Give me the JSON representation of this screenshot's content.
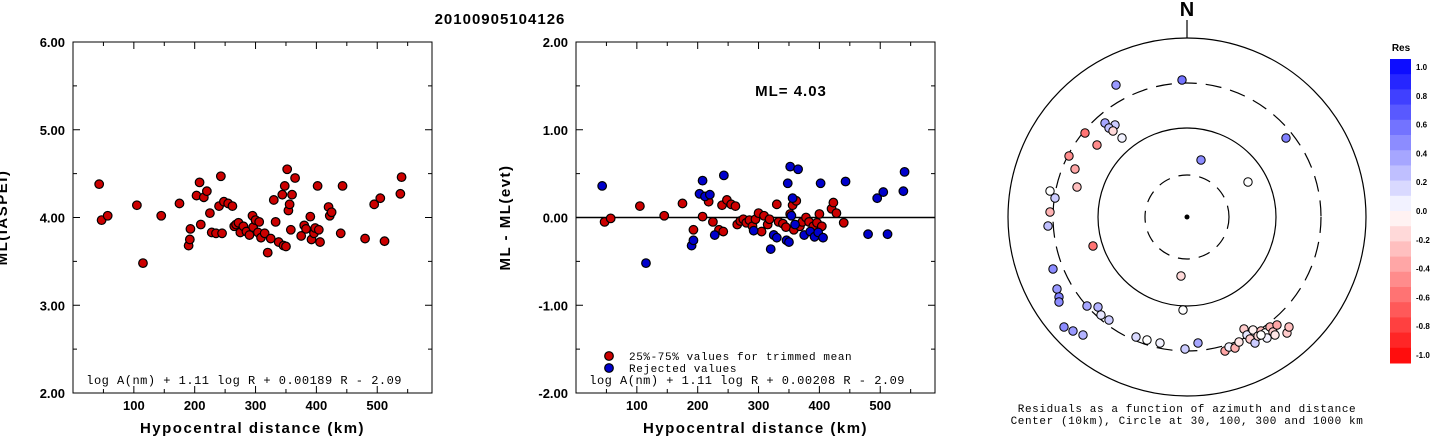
{
  "page_title": "20100905104126",
  "colors": {
    "red": "#cc0000",
    "blue": "#0000cc",
    "axis": "#000000"
  },
  "chart_data": [
    {
      "type": "scatter",
      "title": "",
      "xlabel": "Hypocentral distance (km)",
      "ylabel": "ML(IASPEI)",
      "xlim": [
        0,
        590
      ],
      "ylim": [
        2.0,
        6.0
      ],
      "xticks": [
        "100",
        "200",
        "300",
        "400",
        "500"
      ],
      "yticks": [
        "2.00",
        "3.00",
        "4.00",
        "5.00",
        "6.00"
      ],
      "formula": "log A(nm) + 1.11 log R + 0.00189 R - 2.09",
      "series": [
        {
          "color": "#cc0000",
          "points": [
            [
              43,
              4.38
            ],
            [
              47,
              3.97
            ],
            [
              57,
              4.02
            ],
            [
              105,
              4.14
            ],
            [
              115,
              3.48
            ],
            [
              145,
              4.02
            ],
            [
              175,
              4.16
            ],
            [
              190,
              3.68
            ],
            [
              192,
              3.75
            ],
            [
              193,
              3.87
            ],
            [
              203,
              4.25
            ],
            [
              208,
              4.4
            ],
            [
              210,
              3.92
            ],
            [
              215,
              4.23
            ],
            [
              220,
              4.3
            ],
            [
              225,
              4.05
            ],
            [
              228,
              3.83
            ],
            [
              235,
              3.82
            ],
            [
              240,
              4.13
            ],
            [
              243,
              4.47
            ],
            [
              245,
              3.82
            ],
            [
              248,
              4.18
            ],
            [
              255,
              4.16
            ],
            [
              262,
              4.13
            ],
            [
              265,
              3.9
            ],
            [
              268,
              3.92
            ],
            [
              272,
              3.94
            ],
            [
              275,
              3.83
            ],
            [
              280,
              3.9
            ],
            [
              285,
              3.84
            ],
            [
              290,
              3.8
            ],
            [
              295,
              4.02
            ],
            [
              296,
              3.89
            ],
            [
              300,
              3.97
            ],
            [
              304,
              3.83
            ],
            [
              306,
              3.95
            ],
            [
              309,
              3.77
            ],
            [
              315,
              3.82
            ],
            [
              320,
              3.6
            ],
            [
              325,
              3.76
            ],
            [
              330,
              4.2
            ],
            [
              333,
              3.95
            ],
            [
              338,
              3.72
            ],
            [
              344,
              4.26
            ],
            [
              346,
              3.68
            ],
            [
              348,
              4.36
            ],
            [
              350,
              3.67
            ],
            [
              352,
              4.55
            ],
            [
              354,
              4.08
            ],
            [
              356,
              4.15
            ],
            [
              358,
              3.86
            ],
            [
              360,
              4.26
            ],
            [
              365,
              4.45
            ],
            [
              375,
              3.79
            ],
            [
              380,
              3.91
            ],
            [
              383,
              3.87
            ],
            [
              390,
              4.01
            ],
            [
              392,
              3.75
            ],
            [
              396,
              3.82
            ],
            [
              398,
              3.88
            ],
            [
              402,
              4.36
            ],
            [
              404,
              3.86
            ],
            [
              406,
              3.72
            ],
            [
              420,
              4.12
            ],
            [
              422,
              4.02
            ],
            [
              425,
              4.06
            ],
            [
              440,
              3.82
            ],
            [
              443,
              4.36
            ],
            [
              480,
              3.76
            ],
            [
              495,
              4.15
            ],
            [
              505,
              4.22
            ],
            [
              512,
              3.73
            ],
            [
              538,
              4.27
            ],
            [
              540,
              4.46
            ]
          ]
        }
      ]
    },
    {
      "type": "scatter",
      "title": "",
      "xlabel": "Hypocentral distance (km)",
      "ylabel": "ML - ML(evt)",
      "xlim": [
        0,
        590
      ],
      "ylim": [
        -2.0,
        2.0
      ],
      "xticks": [
        "100",
        "200",
        "300",
        "400",
        "500"
      ],
      "yticks": [
        "-2.00",
        "-1.00",
        "0.00",
        "1.00",
        "2.00"
      ],
      "annotation": "ML= 4.03",
      "formula": "log A(nm) + 1.11 log R + 0.00208 R - 2.09",
      "legend": {
        "position": "bottom-left",
        "entries": [
          "25%-75% values for trimmed mean",
          "Rejected values"
        ]
      },
      "series": [
        {
          "name": "25%-75% values for trimmed mean",
          "color": "#cc0000",
          "points": [
            [
              47,
              -0.05
            ],
            [
              57,
              -0.01
            ],
            [
              105,
              0.13
            ],
            [
              145,
              0.02
            ],
            [
              175,
              0.16
            ],
            [
              193,
              -0.14
            ],
            [
              208,
              0.01
            ],
            [
              218,
              0.18
            ],
            [
              225,
              -0.05
            ],
            [
              235,
              -0.14
            ],
            [
              240,
              0.14
            ],
            [
              242,
              -0.16
            ],
            [
              248,
              0.2
            ],
            [
              255,
              0.15
            ],
            [
              262,
              0.13
            ],
            [
              265,
              -0.08
            ],
            [
              270,
              -0.04
            ],
            [
              275,
              -0.02
            ],
            [
              280,
              -0.06
            ],
            [
              285,
              -0.03
            ],
            [
              290,
              -0.1
            ],
            [
              295,
              -0.02
            ],
            [
              300,
              0.05
            ],
            [
              305,
              -0.16
            ],
            [
              309,
              0.02
            ],
            [
              315,
              -0.08
            ],
            [
              318,
              -0.02
            ],
            [
              325,
              -0.2
            ],
            [
              330,
              0.15
            ],
            [
              333,
              -0.05
            ],
            [
              340,
              -0.07
            ],
            [
              345,
              -0.11
            ],
            [
              352,
              0.04
            ],
            [
              356,
              0.14
            ],
            [
              358,
              -0.14
            ],
            [
              362,
              0.19
            ],
            [
              368,
              -0.1
            ],
            [
              372,
              -0.05
            ],
            [
              378,
              0.0
            ],
            [
              383,
              -0.05
            ],
            [
              390,
              -0.1
            ],
            [
              396,
              -0.06
            ],
            [
              400,
              0.04
            ],
            [
              404,
              -0.1
            ],
            [
              420,
              0.1
            ],
            [
              423,
              0.17
            ],
            [
              428,
              0.05
            ],
            [
              440,
              -0.06
            ]
          ]
        },
        {
          "name": "Rejected values",
          "color": "#0000cc",
          "points": [
            [
              43,
              0.36
            ],
            [
              115,
              -0.52
            ],
            [
              190,
              -0.32
            ],
            [
              193,
              -0.26
            ],
            [
              203,
              0.27
            ],
            [
              208,
              0.42
            ],
            [
              212,
              0.24
            ],
            [
              220,
              0.26
            ],
            [
              228,
              -0.2
            ],
            [
              243,
              0.48
            ],
            [
              292,
              -0.15
            ],
            [
              320,
              -0.36
            ],
            [
              325,
              -0.2
            ],
            [
              330,
              -0.23
            ],
            [
              346,
              -0.26
            ],
            [
              348,
              0.39
            ],
            [
              350,
              -0.28
            ],
            [
              352,
              0.58
            ],
            [
              354,
              0.02
            ],
            [
              356,
              0.22
            ],
            [
              360,
              -0.08
            ],
            [
              365,
              0.55
            ],
            [
              375,
              -0.2
            ],
            [
              385,
              -0.16
            ],
            [
              392,
              -0.22
            ],
            [
              398,
              -0.17
            ],
            [
              402,
              0.39
            ],
            [
              406,
              -0.23
            ],
            [
              443,
              0.41
            ],
            [
              480,
              -0.19
            ],
            [
              495,
              0.22
            ],
            [
              505,
              0.29
            ],
            [
              512,
              -0.19
            ],
            [
              538,
              0.3
            ],
            [
              540,
              0.52
            ]
          ]
        }
      ]
    }
  ],
  "polar_plot": {
    "north_label": "N",
    "colorbar_title": "Res",
    "colorbar_ticks": [
      "1.0",
      "0.8",
      "0.6",
      "0.4",
      "0.2",
      "0.0",
      "-0.2",
      "-0.4",
      "-0.6",
      "-0.8",
      "-1.0"
    ],
    "caption_line1": "Residuals as a function of azimuth and distance",
    "caption_line2": "Center (10km), Circle at 30, 100, 300 and 1000 km",
    "stations": [
      {
        "dx": -5,
        "dy": -137,
        "r": 0.55
      },
      {
        "dx": -71,
        "dy": -132,
        "r": 0.4
      },
      {
        "dx": -82,
        "dy": -94,
        "r": 0.35
      },
      {
        "dx": -72,
        "dy": -92,
        "r": 0.2
      },
      {
        "dx": -78,
        "dy": -89,
        "r": 0.25
      },
      {
        "dx": -74,
        "dy": -86,
        "r": -0.15
      },
      {
        "dx": -65,
        "dy": -79,
        "r": 0.05
      },
      {
        "dx": -102,
        "dy": -84,
        "r": -0.55
      },
      {
        "dx": -90,
        "dy": -72,
        "r": -0.45
      },
      {
        "dx": 99,
        "dy": -79,
        "r": 0.5
      },
      {
        "dx": 14,
        "dy": -57,
        "r": 0.45
      },
      {
        "dx": 61,
        "dy": -35,
        "r": 0.0
      },
      {
        "dx": -118,
        "dy": -61,
        "r": -0.45
      },
      {
        "dx": -112,
        "dy": -48,
        "r": -0.35
      },
      {
        "dx": -110,
        "dy": -30,
        "r": -0.25
      },
      {
        "dx": -137,
        "dy": -26,
        "r": 0.0
      },
      {
        "dx": -132,
        "dy": -19,
        "r": 0.2
      },
      {
        "dx": -137,
        "dy": -5,
        "r": -0.3
      },
      {
        "dx": -139,
        "dy": 9,
        "r": 0.25
      },
      {
        "dx": -94,
        "dy": 29,
        "r": -0.55
      },
      {
        "dx": -134,
        "dy": 52,
        "r": 0.45
      },
      {
        "dx": -6,
        "dy": 59,
        "r": -0.15
      },
      {
        "dx": -130,
        "dy": 72,
        "r": 0.4
      },
      {
        "dx": -128,
        "dy": 80,
        "r": 0.5
      },
      {
        "dx": -128,
        "dy": 85,
        "r": 0.45
      },
      {
        "dx": -100,
        "dy": 89,
        "r": 0.35
      },
      {
        "dx": -89,
        "dy": 90,
        "r": 0.3
      },
      {
        "dx": -86,
        "dy": 98,
        "r": 0.1
      },
      {
        "dx": -78,
        "dy": 103,
        "r": 0.2
      },
      {
        "dx": -4,
        "dy": 93,
        "r": 0.0
      },
      {
        "dx": -123,
        "dy": 110,
        "r": 0.45
      },
      {
        "dx": -114,
        "dy": 114,
        "r": 0.4
      },
      {
        "dx": -104,
        "dy": 118,
        "r": 0.3
      },
      {
        "dx": -51,
        "dy": 120,
        "r": 0.15
      },
      {
        "dx": -40,
        "dy": 123,
        "r": 0.0
      },
      {
        "dx": -27,
        "dy": 126,
        "r": 0.05
      },
      {
        "dx": -2,
        "dy": 132,
        "r": 0.2
      },
      {
        "dx": 11,
        "dy": 126,
        "r": 0.35
      },
      {
        "dx": 38,
        "dy": 134,
        "r": -0.35
      },
      {
        "dx": 42,
        "dy": 130,
        "r": 0.05
      },
      {
        "dx": 48,
        "dy": 131,
        "r": -0.3
      },
      {
        "dx": 52,
        "dy": 125,
        "r": -0.1
      },
      {
        "dx": 57,
        "dy": 112,
        "r": -0.2
      },
      {
        "dx": 60,
        "dy": 118,
        "r": 0.1
      },
      {
        "dx": 63,
        "dy": 122,
        "r": -0.2
      },
      {
        "dx": 66,
        "dy": 113,
        "r": -0.05
      },
      {
        "dx": 68,
        "dy": 126,
        "r": 0.2
      },
      {
        "dx": 71,
        "dy": 119,
        "r": -0.15
      },
      {
        "dx": 74,
        "dy": 114,
        "r": -0.25
      },
      {
        "dx": 78,
        "dy": 116,
        "r": 0.0
      },
      {
        "dx": 80,
        "dy": 121,
        "r": 0.05
      },
      {
        "dx": 83,
        "dy": 110,
        "r": -0.3
      },
      {
        "dx": 86,
        "dy": 115,
        "r": -0.2
      },
      {
        "dx": 90,
        "dy": 108,
        "r": -0.35
      },
      {
        "dx": 100,
        "dy": 116,
        "r": -0.2
      },
      {
        "dx": 102,
        "dy": 110,
        "r": -0.25
      },
      {
        "dx": 74,
        "dy": 118,
        "r": 0.0
      },
      {
        "dx": 88,
        "dy": 118,
        "r": -0.1
      }
    ]
  }
}
